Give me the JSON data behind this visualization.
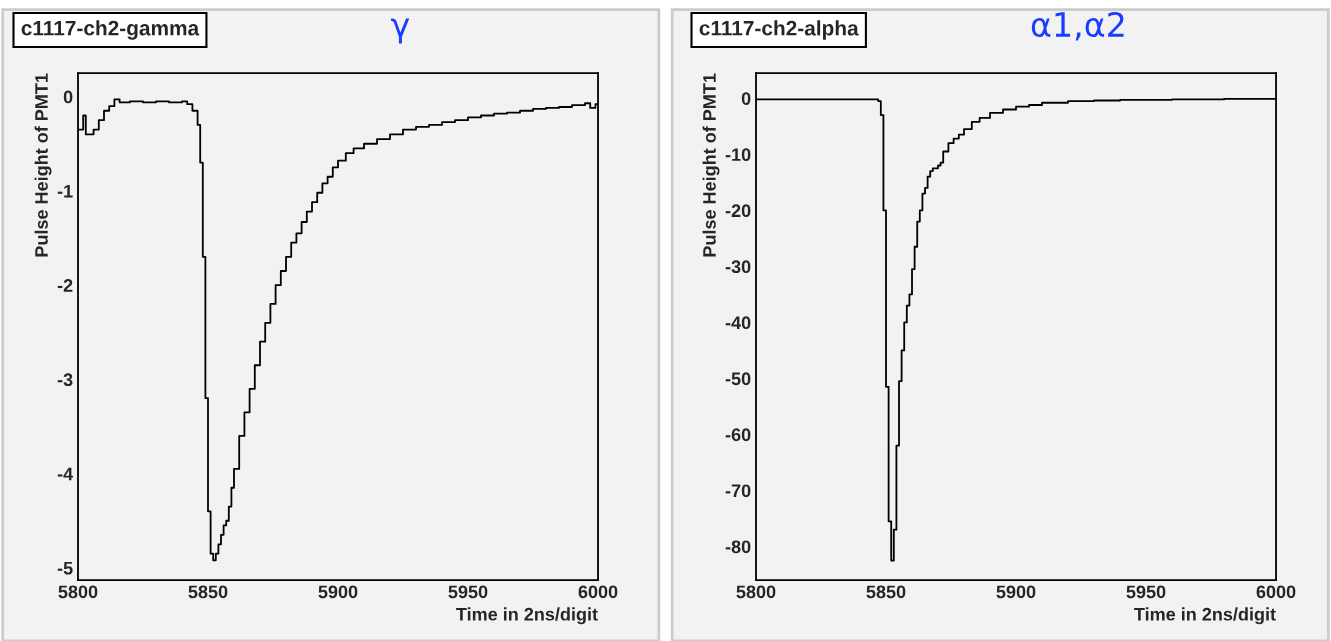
{
  "chart_data": [
    {
      "type": "step",
      "title": "c1117-ch2-gamma",
      "xlabel": "Time in 2ns/digit",
      "ylabel": "Pulse Height of PMT1",
      "annotations": [
        "γ"
      ],
      "xlim": [
        5800,
        6000
      ],
      "xticks": [
        5800,
        5850,
        5900,
        5950,
        6000
      ],
      "ylim": [
        -5.13,
        0.25
      ],
      "yticks": [
        -5,
        -4,
        -3,
        -2,
        -1,
        0
      ],
      "grid": false,
      "legend": false,
      "series": [
        {
          "color": "#000000",
          "x": [
            5800,
            5802,
            5803,
            5806,
            5808,
            5810,
            5812,
            5814,
            5816,
            5820,
            5825,
            5830,
            5835,
            5840,
            5842,
            5844,
            5846,
            5847,
            5848,
            5849,
            5850,
            5851,
            5852,
            5853,
            5854,
            5855,
            5856,
            5857,
            5858,
            5859,
            5860,
            5862,
            5864,
            5866,
            5868,
            5870,
            5872,
            5874,
            5876,
            5878,
            5880,
            5882,
            5884,
            5886,
            5888,
            5890,
            5892,
            5894,
            5896,
            5898,
            5900,
            5903,
            5906,
            5910,
            5915,
            5920,
            5925,
            5930,
            5935,
            5940,
            5945,
            5950,
            5955,
            5960,
            5965,
            5970,
            5975,
            5980,
            5985,
            5990,
            5995,
            5997,
            5999,
            6000
          ],
          "values": [
            -0.35,
            -0.2,
            -0.4,
            -0.35,
            -0.25,
            -0.15,
            -0.1,
            -0.03,
            -0.06,
            -0.05,
            -0.06,
            -0.05,
            -0.06,
            -0.05,
            -0.08,
            -0.15,
            -0.3,
            -0.7,
            -1.7,
            -3.2,
            -4.4,
            -4.85,
            -4.92,
            -4.85,
            -4.75,
            -4.65,
            -4.55,
            -4.5,
            -4.35,
            -4.15,
            -3.95,
            -3.6,
            -3.35,
            -3.1,
            -2.85,
            -2.6,
            -2.4,
            -2.2,
            -2.0,
            -1.85,
            -1.7,
            -1.55,
            -1.45,
            -1.33,
            -1.22,
            -1.12,
            -1.02,
            -0.92,
            -0.85,
            -0.75,
            -0.68,
            -0.6,
            -0.55,
            -0.5,
            -0.45,
            -0.4,
            -0.35,
            -0.32,
            -0.3,
            -0.27,
            -0.25,
            -0.22,
            -0.2,
            -0.18,
            -0.17,
            -0.15,
            -0.13,
            -0.12,
            -0.11,
            -0.09,
            -0.07,
            -0.12,
            -0.08,
            -0.08
          ]
        }
      ]
    },
    {
      "type": "step",
      "title": "c1117-ch2-alpha",
      "xlabel": "Time in 2ns/digit",
      "ylabel": "Pulse Height of PMT1",
      "annotations": [
        "α1,α2"
      ],
      "xlim": [
        5800,
        6000
      ],
      "xticks": [
        5800,
        5850,
        5900,
        5950,
        6000
      ],
      "ylim": [
        -86,
        4.5
      ],
      "yticks": [
        -80,
        -70,
        -60,
        -50,
        -40,
        -30,
        -20,
        -10,
        0
      ],
      "grid": false,
      "legend": false,
      "series": [
        {
          "color": "#000000",
          "x": [
            5800,
            5846,
            5847,
            5848,
            5849,
            5850,
            5851,
            5852,
            5853,
            5854,
            5855,
            5856,
            5857,
            5858,
            5859,
            5860,
            5861,
            5862,
            5863,
            5864,
            5865,
            5866,
            5867,
            5868,
            5870,
            5871,
            5872,
            5874,
            5876,
            5878,
            5880,
            5883,
            5886,
            5890,
            5895,
            5900,
            5905,
            5910,
            5920,
            5930,
            5940,
            5960,
            5980,
            6000
          ],
          "values": [
            -0.2,
            -0.2,
            -0.5,
            -3,
            -20,
            -51.5,
            -75.5,
            -82.5,
            -77,
            -62,
            -50.5,
            -45,
            -40,
            -37,
            -35,
            -30.5,
            -26.5,
            -22,
            -20,
            -17,
            -16,
            -14,
            -13,
            -12.5,
            -12,
            -11.5,
            -9.5,
            -8,
            -7.2,
            -6.5,
            -5.5,
            -4.2,
            -3.5,
            -2.6,
            -2.0,
            -1.5,
            -1.2,
            -0.8,
            -0.5,
            -0.4,
            -0.3,
            -0.2,
            -0.1,
            0
          ]
        }
      ]
    }
  ]
}
